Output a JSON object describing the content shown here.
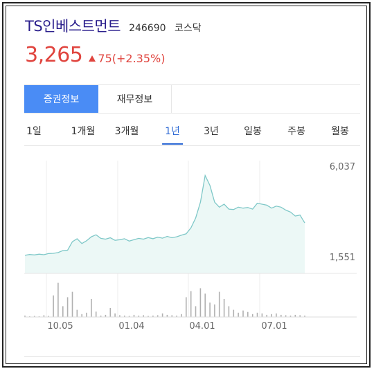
{
  "stock": {
    "name": "TS인베스트먼트",
    "code": "246690",
    "market": "코스닥",
    "price": "3,265",
    "change": "75(+2.35%)"
  },
  "tabs": [
    {
      "label": "증권정보",
      "active": true
    },
    {
      "label": "재무정보",
      "active": false
    }
  ],
  "periods": [
    {
      "label": "1일",
      "active": false
    },
    {
      "label": "1개월",
      "active": false
    },
    {
      "label": "3개월",
      "active": false
    },
    {
      "label": "1년",
      "active": true
    },
    {
      "label": "3년",
      "active": false
    },
    {
      "label": "일봉",
      "active": false
    },
    {
      "label": "주봉",
      "active": false
    },
    {
      "label": "월봉",
      "active": false
    }
  ],
  "chart_data": {
    "type": "area",
    "y_max_label": "6,037",
    "y_min_label": "1,551",
    "ylim": [
      1551,
      6037
    ],
    "x_ticks": [
      "10.05",
      "01.04",
      "04.01",
      "07.01"
    ],
    "price_series": [
      1660,
      1700,
      1680,
      1720,
      1690,
      1750,
      1760,
      1800,
      1900,
      1920,
      2350,
      2500,
      2260,
      2400,
      2600,
      2700,
      2520,
      2480,
      2550,
      2420,
      2450,
      2500,
      2380,
      2450,
      2520,
      2480,
      2560,
      2500,
      2580,
      2530,
      2620,
      2550,
      2600,
      2680,
      2750,
      3050,
      3550,
      4350,
      5700,
      5200,
      4350,
      4100,
      4250,
      4000,
      3980,
      4100,
      4050,
      4080,
      4000,
      4300,
      4250,
      4200,
      4050,
      4150,
      4100,
      3950,
      3850,
      3650,
      3700,
      3300
    ],
    "volume_series": [
      0.04,
      0.02,
      0.03,
      0.02,
      0.05,
      0.03,
      0.6,
      0.95,
      0.3,
      0.55,
      0.7,
      0.2,
      0.08,
      0.12,
      0.5,
      0.15,
      0.04,
      0.06,
      0.25,
      0.1,
      0.05,
      0.04,
      0.03,
      0.06,
      0.04,
      0.05,
      0.03,
      0.04,
      0.05,
      0.1,
      0.06,
      0.05,
      0.04,
      0.08,
      0.55,
      0.72,
      0.3,
      0.8,
      0.65,
      0.4,
      0.35,
      0.7,
      0.5,
      0.3,
      0.2,
      0.12,
      0.18,
      0.14,
      0.08,
      0.12,
      0.1,
      0.06,
      0.08,
      0.1,
      0.06,
      0.05,
      0.04,
      0.06,
      0.05,
      0.04
    ],
    "grid": true
  },
  "colors": {
    "accent": "#4a8cf5",
    "price_up": "#e0443e",
    "line": "#7fc8c8",
    "area_fill": "#ecf8f6",
    "volume": "#b0b0b0",
    "stock_name": "#2a1e8c"
  }
}
